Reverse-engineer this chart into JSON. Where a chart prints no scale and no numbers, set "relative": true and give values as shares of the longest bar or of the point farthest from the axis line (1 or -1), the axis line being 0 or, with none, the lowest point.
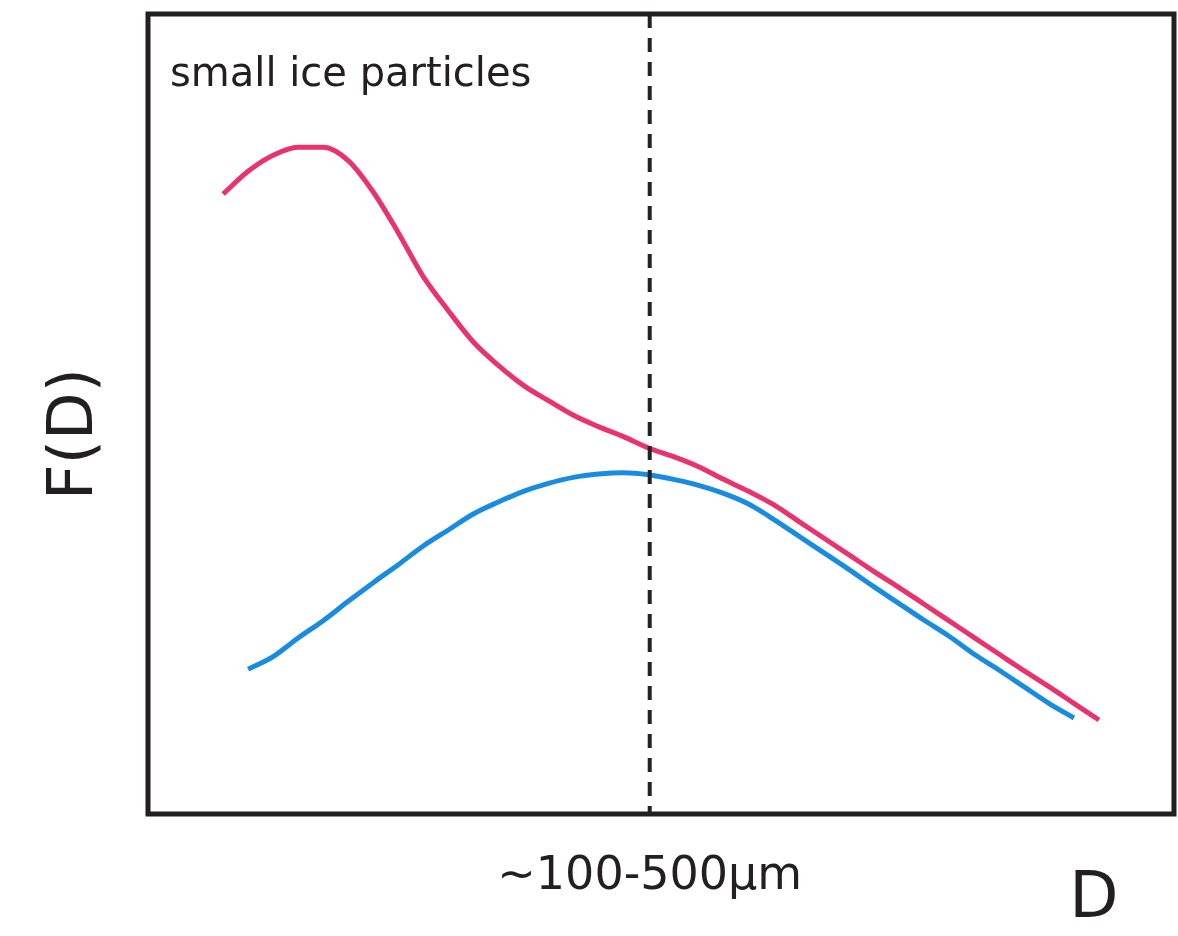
{
  "chart_data": {
    "type": "line",
    "relative": true,
    "ylabel": "F(D)",
    "xlabel": "D",
    "marker": "none",
    "categories": [
      null,
      null,
      null,
      null,
      null,
      null,
      null,
      null,
      null,
      null,
      null,
      null,
      null,
      null,
      null,
      null,
      null,
      null,
      null,
      null,
      null,
      null,
      null,
      null,
      null,
      null,
      null,
      null,
      null,
      null,
      null,
      null,
      null,
      null,
      null,
      null,
      null,
      null,
      null,
      null,
      null,
      null
    ],
    "series": [
      {
        "color": "#e8336f",
        "values": [
          null,
          null,
          null,
          0.93,
          0.964,
          0.988,
          1,
          1,
          0.98,
          0.933,
          0.872,
          0.806,
          0.755,
          0.708,
          0.673,
          0.643,
          0.62,
          0.598,
          0.581,
          0.566,
          0.549,
          0.536,
          0.521,
          0.502,
          0.484,
          0.464,
          0.439,
          0.414,
          0.389,
          0.364,
          0.34,
          0.315,
          0.29,
          0.265,
          0.24,
          0.215,
          0.191,
          0.166,
          0.141,
          null,
          null,
          null
        ]
      },
      {
        "color": "#1a8ce0",
        "values": [
          null,
          null,
          null,
          null,
          0.217,
          0.236,
          0.264,
          0.29,
          0.319,
          0.347,
          0.374,
          0.402,
          0.426,
          0.45,
          0.468,
          0.484,
          0.496,
          0.505,
          0.51,
          0.512,
          0.509,
          0.502,
          0.493,
          0.481,
          0.465,
          0.442,
          0.417,
          0.392,
          0.367,
          0.341,
          0.316,
          0.291,
          0.267,
          0.24,
          0.216,
          0.191,
          0.166,
          0.144,
          null,
          null,
          null,
          null
        ]
      }
    ],
    "annotations": [
      "small ice particles",
      "~100-500μm"
    ]
  }
}
